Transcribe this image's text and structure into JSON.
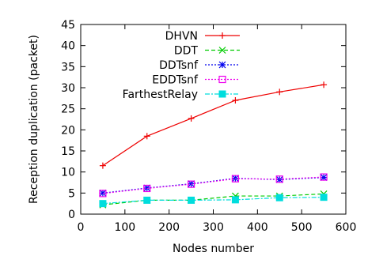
{
  "chart_data": {
    "type": "line",
    "title": "",
    "xlabel": "Nodes number",
    "ylabel": "Reception duplication (packet)",
    "xlim": [
      0,
      600
    ],
    "ylim": [
      0,
      45
    ],
    "xticks": [
      "0",
      "100",
      "200",
      "300",
      "400",
      "500",
      "600"
    ],
    "yticks": [
      "0",
      "5",
      "10",
      "15",
      "20",
      "25",
      "30",
      "35",
      "40",
      "45"
    ],
    "grid": false,
    "legend_position": "top-right",
    "x": [
      50,
      150,
      250,
      350,
      450,
      550
    ],
    "series": [
      {
        "name": "DHVN",
        "values": [
          11.5,
          18.5,
          22.7,
          27.0,
          29.0,
          30.7
        ],
        "color": "#ee0000",
        "marker": "plus",
        "dash": "solid"
      },
      {
        "name": "DDT",
        "values": [
          2.2,
          3.3,
          3.3,
          4.3,
          4.3,
          4.8
        ],
        "color": "#00cc00",
        "marker": "x",
        "dash": "dashed"
      },
      {
        "name": "DDTsnf",
        "values": [
          5.0,
          6.2,
          7.2,
          8.5,
          8.2,
          8.7
        ],
        "color": "#0000ee",
        "marker": "star",
        "dash": "dotted"
      },
      {
        "name": "EDDTsnf",
        "values": [
          4.9,
          6.1,
          7.1,
          8.4,
          8.3,
          8.8
        ],
        "color": "#ee00ee",
        "marker": "square-open",
        "dash": "dotted"
      },
      {
        "name": "FarthestRelay",
        "values": [
          2.5,
          3.3,
          3.3,
          3.4,
          3.9,
          4.0
        ],
        "color": "#00dddd",
        "marker": "square-filled",
        "dash": "dashdot"
      }
    ]
  }
}
